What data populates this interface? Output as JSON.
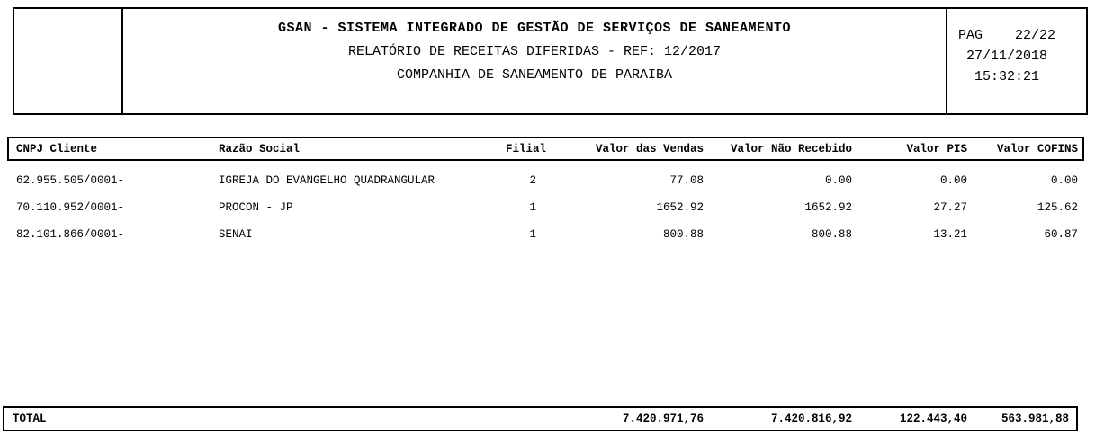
{
  "header": {
    "title_line1": "GSAN - SISTEMA INTEGRADO DE GESTÃO DE SERVIÇOS DE SANEAMENTO",
    "title_line2": "RELATÓRIO DE RECEITAS DIFERIDAS - REF: 12/2017",
    "title_line3": "COMPANHIA DE SANEAMENTO DE PARAIBA",
    "page_label": "PAG",
    "page_value": "22/22",
    "date": "27/11/2018",
    "time": "15:32:21"
  },
  "table": {
    "columns": {
      "cnpj": "CNPJ Cliente",
      "razao_social": "Razão Social",
      "filial": "Filial",
      "valor_vendas": "Valor das Vendas",
      "valor_nao_recebido": "Valor Não Recebido",
      "valor_pis": "Valor PIS",
      "valor_cofins": "Valor COFINS"
    },
    "rows": [
      {
        "cnpj": "62.955.505/0001-",
        "razao_social": "IGREJA DO EVANGELHO QUADRANGULAR",
        "filial": "2",
        "valor_vendas": "77.08",
        "valor_nao_recebido": "0.00",
        "valor_pis": "0.00",
        "valor_cofins": "0.00"
      },
      {
        "cnpj": "70.110.952/0001-",
        "razao_social": "PROCON - JP",
        "filial": "1",
        "valor_vendas": "1652.92",
        "valor_nao_recebido": "1652.92",
        "valor_pis": "27.27",
        "valor_cofins": "125.62"
      },
      {
        "cnpj": "82.101.866/0001-",
        "razao_social": "SENAI",
        "filial": "1",
        "valor_vendas": "800.88",
        "valor_nao_recebido": "800.88",
        "valor_pis": "13.21",
        "valor_cofins": "60.87"
      }
    ],
    "total": {
      "label": "TOTAL",
      "valor_vendas": "7.420.971,76",
      "valor_nao_recebido": "7.420.816,92",
      "valor_pis": "122.443,40",
      "valor_cofins": "563.981,88"
    }
  },
  "colors": {
    "border": "#000000",
    "background": "#ffffff",
    "page_edge": "#c9c9c9"
  }
}
